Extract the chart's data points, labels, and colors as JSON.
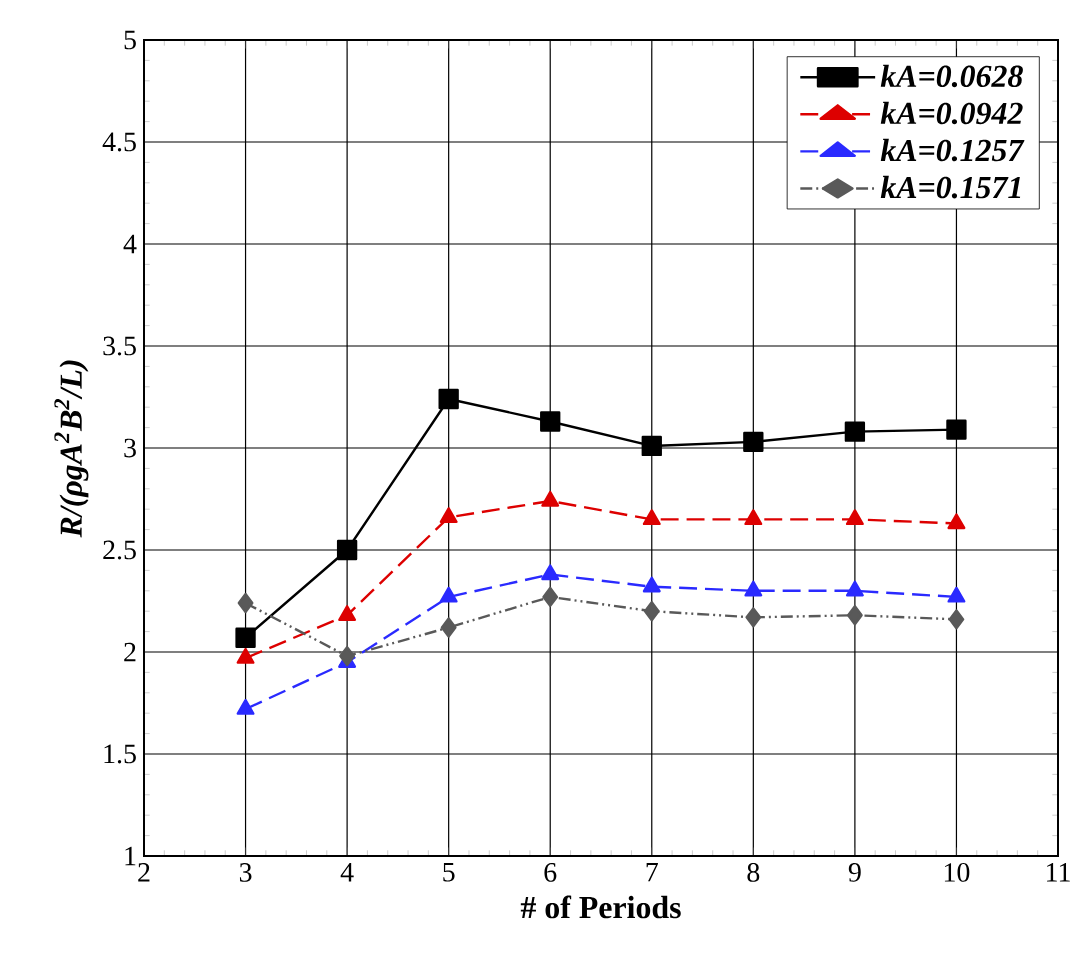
{
  "chart_data": {
    "type": "line",
    "xlabel": "# of Periods",
    "ylabel": "R/(ρgA$^{2}$B$^{2}$/L)",
    "x": [
      3,
      4,
      5,
      6,
      7,
      8,
      9,
      10
    ],
    "series": [
      {
        "name": "kA=0.0628",
        "color": "#000000",
        "marker": "square",
        "line_style": "solid",
        "values": [
          2.07,
          2.5,
          3.24,
          3.13,
          3.01,
          3.03,
          3.08,
          3.09
        ]
      },
      {
        "name": "kA=0.0942",
        "color": "#dd0000",
        "marker": "triangle",
        "line_style": "dashed",
        "values": [
          1.97,
          2.18,
          2.66,
          2.74,
          2.65,
          2.65,
          2.65,
          2.63
        ]
      },
      {
        "name": "kA=0.1257",
        "color": "#2a2aff",
        "marker": "triangle",
        "line_style": "dashed",
        "values": [
          1.72,
          1.95,
          2.27,
          2.38,
          2.32,
          2.3,
          2.3,
          2.27
        ]
      },
      {
        "name": "kA=0.1571",
        "color": "#595959",
        "marker": "diamond",
        "line_style": "dotted",
        "values": [
          2.24,
          1.98,
          2.12,
          2.27,
          2.2,
          2.17,
          2.18,
          2.16
        ]
      }
    ],
    "xlim": [
      2,
      11
    ],
    "ylim": [
      1,
      5
    ],
    "xticks": [
      2,
      3,
      4,
      5,
      6,
      7,
      8,
      9,
      10,
      11
    ],
    "yticks": [
      1,
      1.5,
      2,
      2.5,
      3,
      3.5,
      4,
      4.5,
      5
    ],
    "grid": true,
    "legend": "top right"
  }
}
